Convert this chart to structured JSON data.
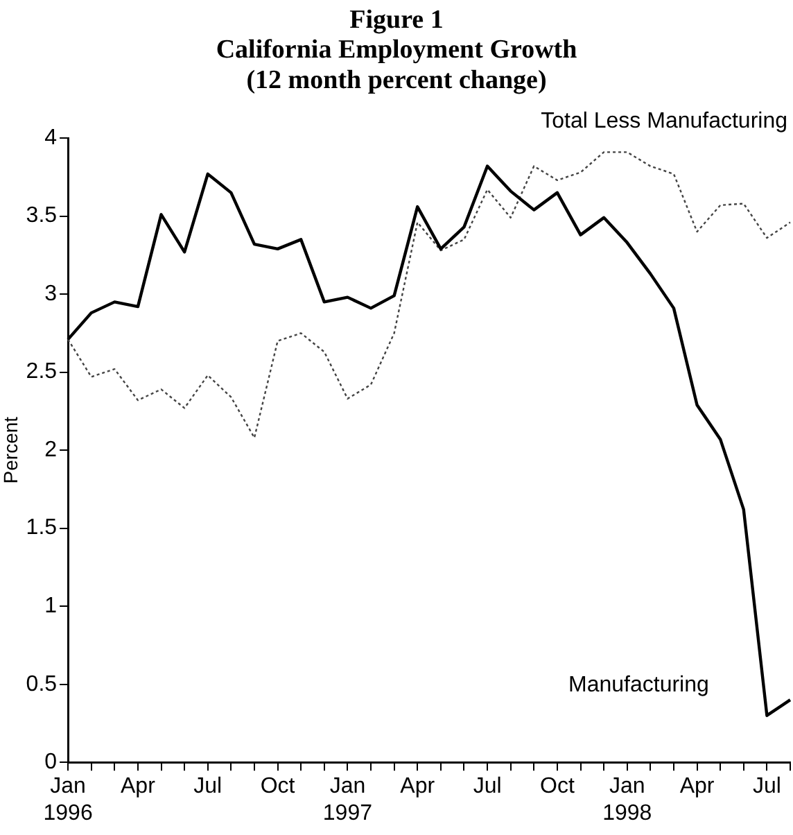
{
  "chart_data": {
    "type": "line",
    "title": "Figure 1\nCalifornia Employment Growth\n(12 month percent change)",
    "ylabel": "Percent",
    "categories": [
      "Jan\n1996",
      null,
      null,
      "Apr",
      null,
      null,
      "Jul",
      null,
      null,
      "Oct",
      null,
      null,
      "Jan\n1997",
      null,
      null,
      "Apr",
      null,
      null,
      "Jul",
      null,
      null,
      "Oct",
      null,
      null,
      "Jan\n1998",
      null,
      null,
      "Apr",
      null,
      null,
      "Jul",
      null
    ],
    "series": [
      {
        "name": "Manufacturing",
        "color": "#000000",
        "line_style": "solid",
        "values": [
          2.71,
          2.88,
          2.95,
          2.92,
          3.51,
          3.27,
          3.77,
          3.65,
          3.32,
          3.29,
          3.35,
          2.95,
          2.98,
          2.91,
          2.99,
          3.56,
          3.29,
          3.43,
          3.82,
          3.66,
          3.54,
          3.65,
          3.38,
          3.49,
          3.33,
          3.13,
          2.91,
          2.29,
          2.07,
          1.62,
          0.3,
          0.4
        ]
      },
      {
        "name": "Total Less Manufacturing",
        "color": "#444444",
        "line_style": "dotted",
        "values": [
          2.71,
          2.47,
          2.52,
          2.32,
          2.39,
          2.27,
          2.48,
          2.34,
          2.08,
          2.7,
          2.75,
          2.63,
          2.33,
          2.42,
          2.75,
          3.46,
          3.28,
          3.35,
          3.67,
          3.49,
          3.82,
          3.73,
          3.78,
          3.91,
          3.91,
          3.82,
          3.77,
          3.4,
          3.57,
          3.58,
          3.36,
          3.46
        ]
      }
    ],
    "ylim": [
      0,
      4
    ],
    "yticks": [
      0,
      0.5,
      1,
      1.5,
      2,
      2.5,
      3,
      3.5,
      4
    ],
    "grid": false,
    "legend": false,
    "marker": "none"
  }
}
